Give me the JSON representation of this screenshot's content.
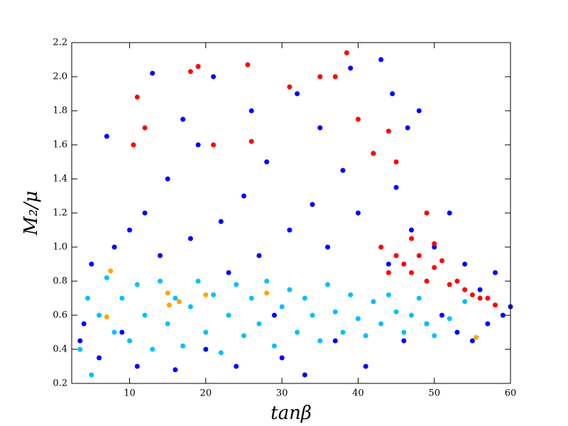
{
  "chart_data": {
    "type": "scatter",
    "x_label": "tanβ",
    "y_label": "M₂/μ",
    "xlim": [
      2.4,
      60
    ],
    "xticks": [
      10,
      20,
      30,
      40,
      50,
      60
    ],
    "ylim": [
      0.2,
      2.2
    ],
    "yticks": [
      0.2,
      0.4,
      0.6,
      0.8,
      {
        "value": 1,
        "label": "1.0"
      },
      1.2,
      1.4,
      1.6,
      1.8,
      {
        "value": 2,
        "label": "2.0"
      },
      2.2
    ],
    "series": [
      {
        "color": "#0000ff",
        "x": [
          3.5,
          5,
          6,
          8,
          10,
          11,
          12,
          14,
          15,
          16,
          18,
          19,
          20,
          21,
          22,
          24,
          25,
          26,
          27,
          28,
          30,
          31,
          32,
          33,
          34,
          35,
          36,
          37,
          38,
          39,
          40,
          41,
          42,
          43,
          44,
          45,
          46,
          47,
          48,
          49,
          50,
          51,
          52,
          53,
          54,
          55,
          56,
          57,
          58,
          59,
          60,
          13,
          17,
          9,
          7,
          4,
          23,
          29,
          44.5,
          46.5
        ],
        "values": [
          0.45,
          0.9,
          0.35,
          1.0,
          1.1,
          0.3,
          1.2,
          0.95,
          1.4,
          0.28,
          1.05,
          1.6,
          0.4,
          2.0,
          1.15,
          0.3,
          1.3,
          1.8,
          0.95,
          1.5,
          0.35,
          1.1,
          1.9,
          0.25,
          1.25,
          1.7,
          1.0,
          0.45,
          1.45,
          2.05,
          1.2,
          0.3,
          1.55,
          2.1,
          0.9,
          1.35,
          0.45,
          1.1,
          1.8,
          0.55,
          1.0,
          0.6,
          1.2,
          0.5,
          0.9,
          0.45,
          0.75,
          0.55,
          0.85,
          0.6,
          0.65,
          2.02,
          1.75,
          0.5,
          1.65,
          0.55,
          0.85,
          0.6,
          1.9,
          1.7
        ]
      },
      {
        "color": "#00bfff",
        "x": [
          3.5,
          4.5,
          5,
          6,
          7,
          8,
          9,
          10,
          11,
          12,
          13,
          14,
          15,
          16,
          17,
          18,
          19,
          20,
          21,
          22,
          23,
          24,
          25,
          26,
          27,
          28,
          29,
          30,
          31,
          32,
          33,
          34,
          35,
          36,
          37,
          38,
          39,
          40,
          41,
          42,
          43,
          44,
          45,
          46,
          47,
          48,
          49,
          50,
          52,
          54
        ],
        "values": [
          0.4,
          0.7,
          0.25,
          0.6,
          0.82,
          0.5,
          0.7,
          0.45,
          0.78,
          0.6,
          0.4,
          0.8,
          0.55,
          0.7,
          0.42,
          0.65,
          0.8,
          0.5,
          0.72,
          0.38,
          0.6,
          0.78,
          0.48,
          0.7,
          0.55,
          0.8,
          0.42,
          0.65,
          0.75,
          0.5,
          0.7,
          0.6,
          0.45,
          0.78,
          0.62,
          0.5,
          0.72,
          0.58,
          0.48,
          0.68,
          0.55,
          0.72,
          0.62,
          0.5,
          0.6,
          0.7,
          0.55,
          0.48,
          0.58,
          0.68
        ]
      },
      {
        "color": "#ff0000",
        "x": [
          11,
          10.5,
          12,
          18,
          19,
          21,
          25.5,
          26,
          31,
          35,
          37,
          38.5,
          40,
          42,
          44,
          45,
          43,
          45,
          46,
          47,
          48,
          49,
          50,
          51,
          52,
          53,
          54,
          55,
          56,
          44,
          47,
          50,
          49,
          57,
          58
        ],
        "values": [
          1.88,
          1.6,
          1.7,
          2.03,
          2.06,
          1.6,
          2.07,
          1.62,
          1.94,
          2.0,
          2.0,
          2.14,
          1.75,
          1.55,
          1.68,
          1.5,
          1.0,
          0.95,
          0.9,
          0.85,
          0.95,
          0.8,
          0.88,
          0.92,
          0.78,
          0.8,
          0.75,
          0.72,
          0.7,
          0.85,
          1.05,
          1.02,
          1.2,
          0.7,
          0.66
        ]
      },
      {
        "color": "#ffa500",
        "x": [
          7,
          7.5,
          15,
          15.2,
          16.5,
          20,
          28,
          55.5
        ],
        "values": [
          0.59,
          0.86,
          0.73,
          0.66,
          0.68,
          0.72,
          0.73,
          0.47
        ]
      }
    ]
  }
}
